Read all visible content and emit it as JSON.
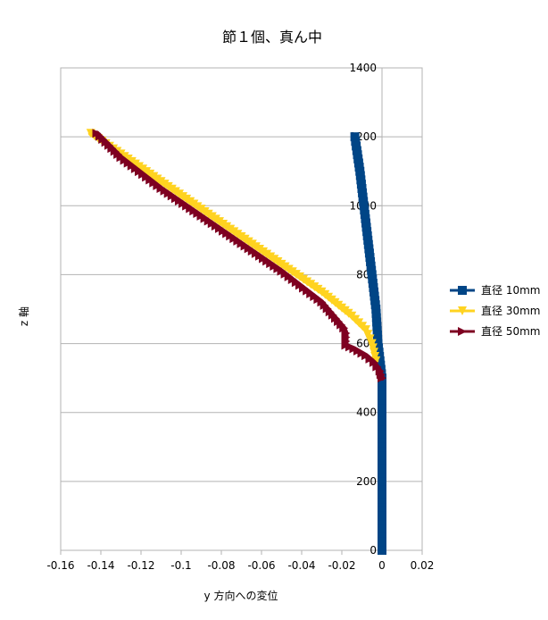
{
  "chart_data": {
    "type": "scatter",
    "title": "節１個、真ん中",
    "xlabel": "y 方向への変位",
    "ylabel": "z 軸",
    "xlim": [
      -0.16,
      0.02
    ],
    "ylim": [
      0,
      1400
    ],
    "x_ticks": [
      -0.16,
      -0.14,
      -0.12,
      -0.1,
      -0.08,
      -0.06,
      -0.04,
      -0.02,
      0,
      0.02
    ],
    "x_tick_labels": [
      "-0.16",
      "-0.14",
      "-0.12",
      "-0.1",
      "-0.08",
      "-0.06",
      "-0.04",
      "-0.02",
      "0",
      "0.02"
    ],
    "y_ticks": [
      0,
      200,
      400,
      600,
      800,
      1000,
      1200,
      1400
    ],
    "y_tick_labels": [
      "0",
      "200",
      "400",
      "600",
      "800",
      "1000",
      "1200",
      "1400"
    ],
    "grid": "horizontal",
    "legend_position": "right",
    "series": [
      {
        "name": "直径 10mm",
        "color": "#004586",
        "marker": "square",
        "points": [
          [
            0,
            0
          ],
          [
            0,
            100
          ],
          [
            0,
            200
          ],
          [
            0,
            300
          ],
          [
            0,
            400
          ],
          [
            0,
            500
          ],
          [
            -0.001,
            550
          ],
          [
            -0.002,
            600
          ],
          [
            -0.003,
            700
          ],
          [
            -0.005,
            800
          ],
          [
            -0.007,
            900
          ],
          [
            -0.009,
            1000
          ],
          [
            -0.011,
            1100
          ],
          [
            -0.0125,
            1160
          ],
          [
            -0.0135,
            1200
          ]
        ]
      },
      {
        "name": "直径 30mm",
        "color": "#ffd320",
        "marker": "triangle-down",
        "points": [
          [
            -0.003,
            550
          ],
          [
            -0.005,
            600
          ],
          [
            -0.008,
            640
          ],
          [
            -0.015,
            680
          ],
          [
            -0.03,
            750
          ],
          [
            -0.05,
            830
          ],
          [
            -0.07,
            910
          ],
          [
            -0.09,
            990
          ],
          [
            -0.11,
            1070
          ],
          [
            -0.13,
            1150
          ],
          [
            -0.145,
            1210
          ]
        ]
      },
      {
        "name": "直径 50mm",
        "color": "#7e0021",
        "marker": "triangle-right",
        "points": [
          [
            0,
            500
          ],
          [
            -0.001,
            520
          ],
          [
            -0.004,
            545
          ],
          [
            -0.008,
            565
          ],
          [
            -0.014,
            585
          ],
          [
            -0.018,
            595
          ],
          [
            -0.018,
            630
          ],
          [
            -0.019,
            645
          ],
          [
            -0.03,
            720
          ],
          [
            -0.05,
            810
          ],
          [
            -0.07,
            890
          ],
          [
            -0.09,
            970
          ],
          [
            -0.11,
            1050
          ],
          [
            -0.13,
            1140
          ],
          [
            -0.142,
            1210
          ]
        ]
      }
    ]
  }
}
